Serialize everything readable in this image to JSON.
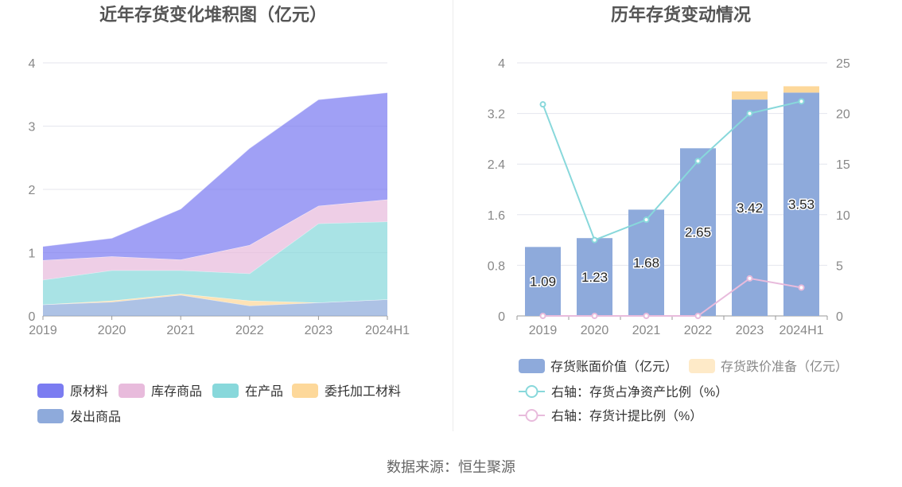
{
  "source_note": "数据来源：恒生聚源",
  "chart_data": [
    {
      "type": "area",
      "stacked": true,
      "title": "近年存货变化堆积图（亿元）",
      "categories": [
        "2019",
        "2020",
        "2021",
        "2022",
        "2023",
        "2024H1"
      ],
      "ylim": [
        0,
        4
      ],
      "yticks": [
        "0",
        "1",
        "2",
        "3",
        "4"
      ],
      "grid": true,
      "legend_position": "bottom",
      "series": [
        {
          "name": "发出商品",
          "color": "#8eaadb",
          "values": [
            0.18,
            0.22,
            0.33,
            0.16,
            0.21,
            0.26
          ]
        },
        {
          "name": "委托加工材料",
          "color": "#fdd89a",
          "values": [
            0.0,
            0.02,
            0.02,
            0.08,
            0.0,
            0.0
          ]
        },
        {
          "name": "在产品",
          "color": "#88d8db",
          "values": [
            0.39,
            0.48,
            0.37,
            0.43,
            1.25,
            1.23
          ]
        },
        {
          "name": "库存商品",
          "color": "#e8bbdc",
          "values": [
            0.31,
            0.22,
            0.17,
            0.45,
            0.28,
            0.35
          ]
        },
        {
          "name": "原材料",
          "color": "#7b7cf1",
          "values": [
            0.22,
            0.29,
            0.8,
            1.53,
            1.68,
            1.69
          ]
        }
      ],
      "legend_order": [
        "原材料",
        "库存商品",
        "在产品",
        "委托加工材料",
        "发出商品"
      ]
    },
    {
      "type": "bar",
      "title": "历年存货变动情况",
      "categories": [
        "2019",
        "2020",
        "2021",
        "2022",
        "2023",
        "2024H1"
      ],
      "ylim": [
        0,
        4
      ],
      "yticks": [
        "0",
        "0.8",
        "1.6",
        "2.4",
        "3.2",
        "4"
      ],
      "y2lim": [
        0,
        25
      ],
      "y2ticks": [
        "0",
        "5",
        "10",
        "15",
        "20",
        "25"
      ],
      "grid": true,
      "legend_position": "bottom",
      "bars": {
        "book_value": {
          "name": "存货账面价值（亿元）",
          "color": "#8eaadb",
          "values": [
            1.09,
            1.23,
            1.68,
            2.65,
            3.42,
            3.53
          ],
          "labels": [
            "1.09",
            "1.23",
            "1.68",
            "2.65",
            "3.42",
            "3.53"
          ]
        },
        "impairment": {
          "name": "存货跌价准备（亿元）",
          "color": "#fdd89a",
          "values": [
            0,
            0,
            0,
            0,
            0.13,
            0.1
          ]
        }
      },
      "lines": [
        {
          "name": "右轴：存货占净资产比例（%）",
          "color": "#88d8db",
          "axis": "right",
          "values": [
            20.9,
            7.5,
            9.5,
            15.3,
            20.0,
            21.2
          ]
        },
        {
          "name": "右轴：存货计提比例（%）",
          "color": "#e8bbdc",
          "axis": "right",
          "values": [
            0,
            0,
            0,
            0,
            3.7,
            2.8
          ]
        }
      ]
    }
  ]
}
